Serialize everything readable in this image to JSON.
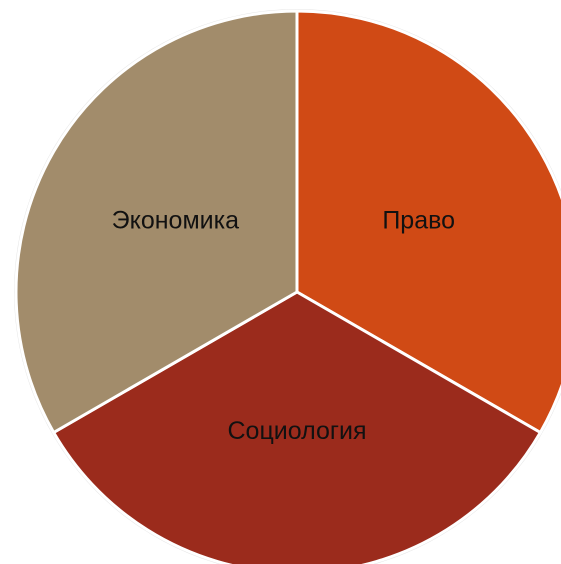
{
  "chart_data": {
    "type": "pie",
    "slices": [
      {
        "label": "Право",
        "value": 1,
        "color": "#d04a15"
      },
      {
        "label": "Социология",
        "value": 1,
        "color": "#9b2b1c"
      },
      {
        "label": "Экономика",
        "value": 1,
        "color": "#a28c6b"
      }
    ],
    "start_angle_deg": 0,
    "direction": "clockwise",
    "legend": "none"
  }
}
